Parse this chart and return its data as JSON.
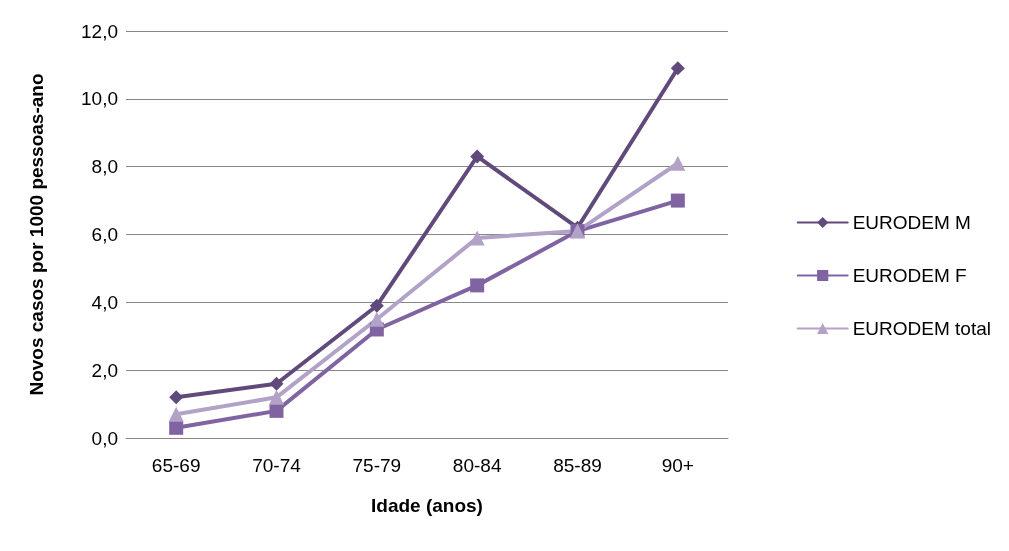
{
  "chart_data": {
    "type": "line",
    "xlabel": "Idade (anos)",
    "ylabel": "Novos casos por 1000 pessoas-ano",
    "categories": [
      "65-69",
      "70-74",
      "75-79",
      "80-84",
      "85-89",
      "90+"
    ],
    "series": [
      {
        "name": "EURODEM M",
        "color": "#604a7b",
        "marker": "diamond",
        "values": [
          1.2,
          1.6,
          3.9,
          8.3,
          6.2,
          10.9
        ]
      },
      {
        "name": "EURODEM F",
        "color": "#8064a2",
        "marker": "square",
        "values": [
          0.3,
          0.8,
          3.2,
          4.5,
          6.1,
          7.0
        ]
      },
      {
        "name": "EURODEM total",
        "color": "#b3a2c7",
        "marker": "triangle",
        "values": [
          0.7,
          1.2,
          3.5,
          5.9,
          6.1,
          8.1
        ]
      }
    ],
    "ylim": [
      0,
      12
    ],
    "yticks": [
      {
        "value": 0,
        "label": "0,0"
      },
      {
        "value": 2,
        "label": "2,0"
      },
      {
        "value": 4,
        "label": "4,0"
      },
      {
        "value": 6,
        "label": "6,0"
      },
      {
        "value": 8,
        "label": "8,0"
      },
      {
        "value": 10,
        "label": "10,0"
      },
      {
        "value": 12,
        "label": "12,0"
      }
    ],
    "grid": "y",
    "legend": "right",
    "line_style": "solid"
  }
}
